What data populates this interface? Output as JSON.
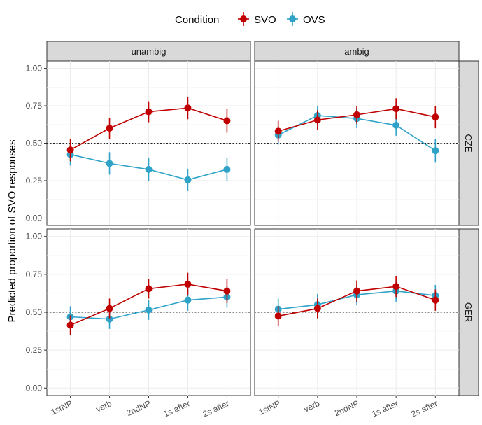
{
  "chart_data": {
    "type": "line",
    "ylabel": "Predicted proportion of SVO responses",
    "legend": {
      "title": "Condition",
      "position": "top"
    },
    "categories": [
      "1stNP",
      "verb",
      "2ndNP",
      "1s after",
      "2s after"
    ],
    "yticks": [
      "0.00",
      "0.25",
      "0.50",
      "0.75",
      "1.00"
    ],
    "ylim": [
      0,
      1
    ],
    "reference_line": 0.5,
    "grid": true,
    "series_defs": [
      {
        "name": "SVO",
        "color": "#c00000"
      },
      {
        "name": "OVS",
        "color": "#2ea3c7"
      }
    ],
    "col_facets": [
      "unambig",
      "ambig"
    ],
    "row_facets": [
      "CZE",
      "GER"
    ],
    "panels": [
      {
        "col": "unambig",
        "row": "CZE",
        "series": [
          {
            "name": "SVO",
            "values": [
              0.455,
              0.6,
              0.71,
              0.735,
              0.65
            ],
            "lower": [
              0.38,
              0.53,
              0.64,
              0.66,
              0.57
            ],
            "upper": [
              0.53,
              0.67,
              0.78,
              0.81,
              0.73
            ]
          },
          {
            "name": "OVS",
            "values": [
              0.425,
              0.365,
              0.325,
              0.255,
              0.325
            ],
            "lower": [
              0.35,
              0.29,
              0.25,
              0.18,
              0.25
            ],
            "upper": [
              0.5,
              0.44,
              0.4,
              0.33,
              0.4
            ]
          }
        ]
      },
      {
        "col": "ambig",
        "row": "CZE",
        "series": [
          {
            "name": "SVO",
            "values": [
              0.58,
              0.655,
              0.69,
              0.73,
              0.675
            ],
            "lower": [
              0.51,
              0.59,
              0.63,
              0.66,
              0.6
            ],
            "upper": [
              0.65,
              0.72,
              0.75,
              0.8,
              0.75
            ]
          },
          {
            "name": "OVS",
            "values": [
              0.555,
              0.685,
              0.665,
              0.62,
              0.45
            ],
            "lower": [
              0.49,
              0.62,
              0.6,
              0.55,
              0.37
            ],
            "upper": [
              0.62,
              0.75,
              0.73,
              0.69,
              0.53
            ]
          }
        ]
      },
      {
        "col": "unambig",
        "row": "GER",
        "series": [
          {
            "name": "SVO",
            "values": [
              0.415,
              0.525,
              0.655,
              0.685,
              0.64
            ],
            "lower": [
              0.35,
              0.46,
              0.59,
              0.61,
              0.56
            ],
            "upper": [
              0.48,
              0.59,
              0.72,
              0.76,
              0.72
            ]
          },
          {
            "name": "OVS",
            "values": [
              0.47,
              0.455,
              0.515,
              0.58,
              0.6
            ],
            "lower": [
              0.4,
              0.39,
              0.45,
              0.51,
              0.53
            ],
            "upper": [
              0.54,
              0.52,
              0.58,
              0.65,
              0.67
            ]
          }
        ]
      },
      {
        "col": "ambig",
        "row": "GER",
        "series": [
          {
            "name": "SVO",
            "values": [
              0.475,
              0.525,
              0.64,
              0.67,
              0.58
            ],
            "lower": [
              0.41,
              0.46,
              0.57,
              0.6,
              0.51
            ],
            "upper": [
              0.54,
              0.59,
              0.71,
              0.74,
              0.65
            ]
          },
          {
            "name": "OVS",
            "values": [
              0.52,
              0.55,
              0.615,
              0.64,
              0.61
            ],
            "lower": [
              0.45,
              0.48,
              0.55,
              0.57,
              0.54
            ],
            "upper": [
              0.59,
              0.62,
              0.68,
              0.71,
              0.68
            ]
          }
        ]
      }
    ]
  }
}
